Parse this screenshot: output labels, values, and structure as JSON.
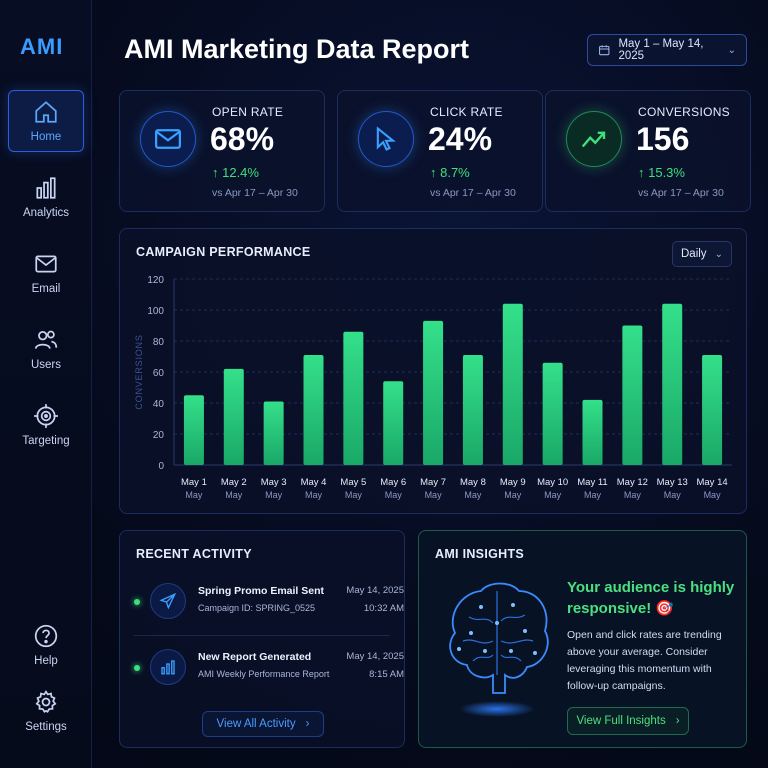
{
  "app": {
    "logo": "AMI",
    "title": "AMI Marketing Data Report"
  },
  "date_range": "May 1 – May 14, 2025",
  "sidebar": {
    "items": [
      {
        "label": "Home",
        "icon": "home-icon"
      },
      {
        "label": "Analytics",
        "icon": "analytics-icon"
      },
      {
        "label": "Email",
        "icon": "mail-icon"
      },
      {
        "label": "Users",
        "icon": "users-icon"
      },
      {
        "label": "Targeting",
        "icon": "target-icon"
      },
      {
        "label": "Help",
        "icon": "help-icon"
      },
      {
        "label": "Settings",
        "icon": "gear-icon"
      }
    ]
  },
  "kpis": [
    {
      "label": "OPEN RATE",
      "value": "68%",
      "delta": "↑ 12.4%",
      "compare": "vs Apr 17 – Apr 30",
      "icon": "mail-icon",
      "color": "#2d8cff"
    },
    {
      "label": "CLICK RATE",
      "value": "24%",
      "delta": "↑ 8.7%",
      "compare": "vs Apr 17 – Apr 30",
      "icon": "cursor-icon",
      "color": "#2d8cff"
    },
    {
      "label": "CONVERSIONS",
      "value": "156",
      "delta": "↑ 15.3%",
      "compare": "vs Apr 17 – Apr 30",
      "icon": "trend-up-icon",
      "color": "#3ee07a"
    }
  ],
  "campaign": {
    "title": "CAMPAIGN PERFORMANCE",
    "interval": "Daily"
  },
  "chart_data": {
    "type": "bar",
    "categories": [
      "May 1",
      "May 2",
      "May 3",
      "May 4",
      "May 5",
      "May 6",
      "May 7",
      "May 8",
      "May 9",
      "May 10",
      "May 11",
      "May 12",
      "May 13",
      "May 14"
    ],
    "sub_labels": [
      "May",
      "May",
      "May",
      "May",
      "May",
      "May",
      "May",
      "May",
      "May",
      "May",
      "May",
      "May",
      "May",
      "May"
    ],
    "values": [
      45,
      62,
      41,
      71,
      86,
      54,
      93,
      71,
      104,
      66,
      42,
      90,
      104,
      71
    ],
    "ylabel": "CONVERSIONS",
    "ylim": [
      0,
      120
    ],
    "yticks": [
      0,
      20,
      40,
      60,
      80,
      100,
      120
    ],
    "grid": true,
    "bar_color": "#34e08a"
  },
  "activity": {
    "title": "RECENT ACTIVITY",
    "items": [
      {
        "title": "Spring Promo Email Sent",
        "sub": "Campaign ID: SPRING_0525",
        "date": "May 14, 2025",
        "time": "10:32 AM",
        "icon": "send-icon"
      },
      {
        "title": "New Report Generated",
        "sub": "AMI Weekly Performance Report",
        "date": "May 14, 2025",
        "time": "8:15 AM",
        "icon": "bar-chart-icon"
      }
    ],
    "button": "View All Activity"
  },
  "insights": {
    "title": "AMI INSIGHTS",
    "headline": "Your audience is highly responsive! 🎯",
    "body": "Open and click rates are trending above your average. Consider leveraging this momentum with follow-up campaigns.",
    "button": "View Full Insights"
  }
}
